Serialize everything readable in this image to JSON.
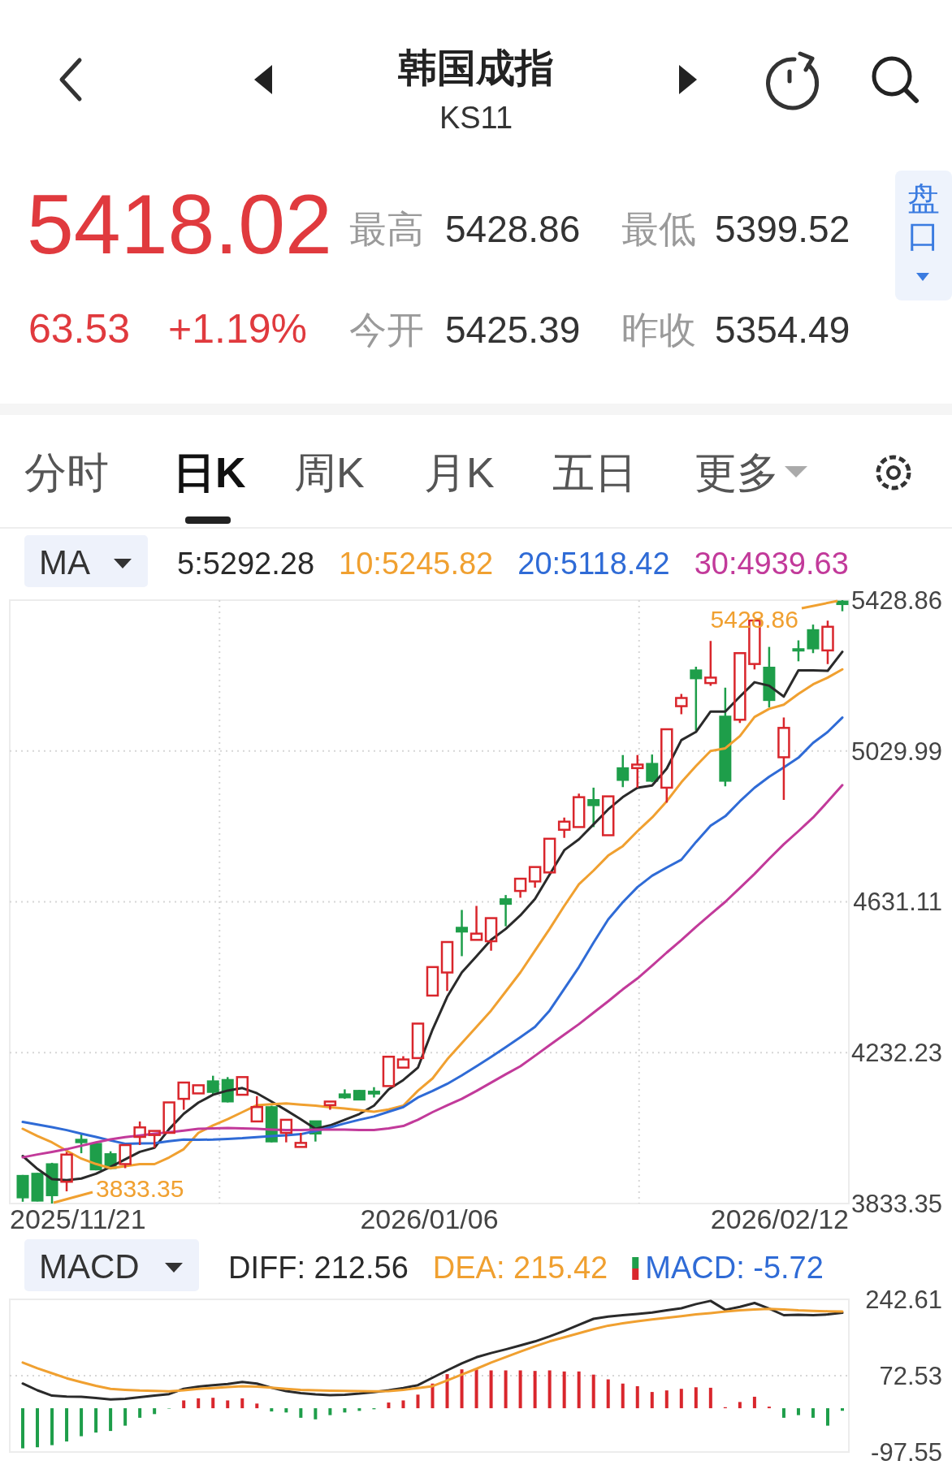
{
  "chart_data": [
    {
      "type": "other",
      "title": "韩国成指",
      "subtitle": "KS11",
      "annotations": [
        "5418.02",
        "最高",
        "5428.86",
        "最低",
        "5399.52",
        "63.53",
        "+1.19%",
        "今开",
        "5425.39",
        "昨收",
        "5354.49",
        "盘口",
        "分时",
        "日K",
        "周K",
        "月K",
        "五日",
        "更多"
      ]
    },
    {
      "type": "candlestick",
      "legend_title": "MA",
      "legend": "top left",
      "grid": true,
      "categories": [
        null,
        null,
        null,
        null,
        null,
        null,
        null,
        null,
        null,
        null,
        null,
        null,
        null,
        null,
        null,
        null,
        null,
        null,
        null,
        null,
        null,
        null,
        null,
        null,
        null,
        null,
        null,
        null,
        null,
        null,
        null,
        null,
        null,
        null,
        null,
        null,
        null,
        null,
        null,
        null,
        null,
        null,
        null,
        null,
        null,
        null,
        null,
        null,
        null,
        null,
        null,
        null,
        null,
        null,
        null,
        null,
        null
      ],
      "ylim": [
        3833.35,
        5428.86
      ],
      "yticks": [
        5428.86,
        5029.99,
        4631.11,
        4232.23,
        3833.35
      ],
      "ohlc": [
        [
          3906.7,
          3908.9,
          3838,
          3849.2
        ],
        [
          3912.4,
          3913.9,
          3839,
          3840.6
        ],
        [
          3937.6,
          3941,
          3833.35,
          3854.9
        ],
        [
          3890.9,
          3969.9,
          3865.7,
          3962.7
        ],
        [
          4002.3,
          4016.6,
          3966.3,
          3995.1
        ],
        [
          3991.5,
          3995,
          3921,
          3923.2
        ],
        [
          3964.2,
          3971.4,
          3923.2,
          3926.8
        ],
        [
          3937.6,
          3991.5,
          3926.8,
          3987.9
        ],
        [
          4009.5,
          4050.4,
          3987.9,
          4034.6
        ],
        [
          4014.5,
          4027.4,
          3980.7,
          4025.3
        ],
        [
          4020.2,
          4102.9,
          4016.7,
          4100.7
        ],
        [
          4110.1,
          4156.8,
          4081.3,
          4153.2
        ],
        [
          4124.5,
          4149.6,
          4120.9,
          4146.0
        ],
        [
          4156.8,
          4171.2,
          4120.9,
          4128.1
        ],
        [
          4160.4,
          4167.6,
          4100.7,
          4102.9
        ],
        [
          4120.9,
          4169.8,
          4117.3,
          4167.6
        ],
        [
          4050.4,
          4117.3,
          4050.4,
          4088.5
        ],
        [
          4088.5,
          4092.1,
          3995.1,
          3997.2
        ],
        [
          4020.2,
          4056.2,
          3995.1,
          4054.7
        ],
        [
          3982.9,
          4020.2,
          3977.1,
          3993.6
        ],
        [
          4051.1,
          4051.1,
          3997.2,
          4018.1
        ],
        [
          4093.5,
          4105,
          4081.3,
          4102.9
        ],
        [
          4122.3,
          4135.2,
          4110.1,
          4113.7
        ],
        [
          4131.6,
          4133.8,
          4106.5,
          4107.9
        ],
        [
          4129.5,
          4141,
          4113.7,
          4123.7
        ],
        [
          4143.9,
          4222.9,
          4142.4,
          4221.5
        ],
        [
          4192.7,
          4222.9,
          4187.0,
          4214.3
        ],
        [
          4217.9,
          4311.3,
          4215.7,
          4309.1
        ],
        [
          4383.2,
          4460.1,
          4381.0,
          4458.6
        ],
        [
          4444.2,
          4526.9,
          4395.4,
          4524.8
        ],
        [
          4562.9,
          4609.6,
          4487.4,
          4552.1
        ],
        [
          4530.5,
          4620.3,
          4530.5,
          4547.0
        ],
        [
          4526.9,
          4589.4,
          4501.8,
          4588.0
        ],
        [
          4638.3,
          4649.1,
          4566.4,
          4625.4
        ],
        [
          4659.9,
          4694.4,
          4641.9,
          4692.2
        ],
        [
          4685.0,
          4724.6,
          4668.5,
          4723.1
        ],
        [
          4708.8,
          4797.9,
          4708.8,
          4797.9
        ],
        [
          4821.6,
          4853.9,
          4800.0,
          4843.1
        ],
        [
          4828.8,
          4917.2,
          4828.8,
          4907.8
        ],
        [
          4900.6,
          4933.0,
          4828.8,
          4886.3
        ],
        [
          4807.2,
          4910.0,
          4807.2,
          4910.0
        ],
        [
          4984.7,
          5019.2,
          4934.4,
          4953.1
        ],
        [
          4984.7,
          5019.2,
          4932.9,
          4994.0
        ],
        [
          4996.2,
          5020.6,
          4947.3,
          4950.9
        ],
        [
          4932.9,
          5087.4,
          4893.4,
          5087.4
        ],
        [
          5148.5,
          5180.9,
          5127.0,
          5170.1
        ],
        [
          5243.4,
          5252.8,
          5083.9,
          5221.9
        ],
        [
          5209.6,
          5321.0,
          5202.5,
          5224.0
        ],
        [
          5121.2,
          5197.4,
          4936.5,
          4950.9
        ],
        [
          5112.6,
          5290.8,
          5104.0,
          5288.7
        ],
        [
          5260.0,
          5378.5,
          5245.6,
          5374.9
        ],
        [
          5250.6,
          5305.2,
          5145.0,
          5164.4
        ],
        [
          5013.4,
          5118.4,
          4900.6,
          5091.0
        ],
        [
          5299.5,
          5322.5,
          5267.1,
          5295.9
        ],
        [
          5349.8,
          5364.2,
          5288.7,
          5300.9
        ],
        [
          5295.9,
          5374.9,
          5260.0,
          5358.4
        ],
        [
          5425.39,
          5428.86,
          5399.52,
          5418.02
        ]
      ],
      "series": [
        {
          "name": "5:5292.28",
          "type": "line",
          "color": "#2a2a2a",
          "values": [
            3959,
            3925,
            3898,
            3895,
            3899.5,
            3912,
            3930.4,
            3950,
            3969.9,
            3980.7,
            4030,
            4070.6,
            4100,
            4120.9,
            4132,
            4138.8,
            4125,
            4102.9,
            4080,
            4056.2,
            4031,
            4040,
            4054.7,
            4070,
            4092.1,
            4135.2,
            4160,
            4192.7,
            4293.3,
            4379.6,
            4444.2,
            4487.4,
            4530.5,
            4559.3,
            4595.2,
            4638.3,
            4703.0,
            4767.7,
            4796.4,
            4835.9,
            4875.5,
            4907.8,
            4933,
            4938.7,
            4983.3,
            5058.7,
            5080.3,
            5134.2,
            5134.2,
            5173.7,
            5211.8,
            5202.5,
            5173.7,
            5243.4,
            5243.4,
            5242,
            5292.28
          ]
        },
        {
          "name": "10:5245.82",
          "type": "line",
          "color": "#f0a030",
          "values": [
            4031,
            4012,
            3995,
            3973,
            3952,
            3938,
            3926.8,
            3932,
            3937.6,
            3937.6,
            3955,
            3977.1,
            4020.2,
            4040,
            4056.2,
            4075,
            4093.5,
            4096,
            4097.9,
            4095,
            4092.1,
            4088,
            4084.9,
            4080,
            4076.3,
            4082,
            4092.1,
            4131.6,
            4164,
            4214.3,
            4257.4,
            4300.5,
            4343.6,
            4393.9,
            4444.2,
            4501.8,
            4559.3,
            4620.3,
            4677.8,
            4713.8,
            4753.3,
            4778.4,
            4818,
            4853.9,
            4897,
            4947.3,
            4990.4,
            5030,
            5037.2,
            5069.5,
            5119.8,
            5141.4,
            5152.2,
            5180.9,
            5206.1,
            5224,
            5245.82
          ]
        },
        {
          "name": "20:5118.42",
          "type": "line",
          "color": "#2f6bd6",
          "values": [
            4049,
            4042,
            4035,
            4027.4,
            4018,
            4009.5,
            4000,
            3991.5,
            3992,
            3993,
            3998,
            4002.3,
            4002,
            4002.3,
            4004,
            4005.9,
            4009,
            4011.6,
            4014,
            4016.7,
            4025,
            4034.6,
            4045,
            4054.7,
            4063.4,
            4076,
            4088.5,
            4113.7,
            4131,
            4149.6,
            4172,
            4196.3,
            4221,
            4246.6,
            4273,
            4300.5,
            4343.6,
            4401.1,
            4458.6,
            4523.3,
            4584.4,
            4630,
            4670,
            4700,
            4722,
            4742.5,
            4789.2,
            4832.3,
            4857.5,
            4897,
            4932.9,
            4961.7,
            4986.8,
            5012,
            5051.5,
            5080.3,
            5118.42
          ]
        },
        {
          "name": "30:4939.63",
          "type": "line",
          "color": "#c23a9a",
          "values": [
            3955.6,
            3963,
            3970,
            3977,
            3986,
            3995,
            4003,
            4009,
            4013,
            4018,
            4021.7,
            4026,
            4031,
            4032,
            4033.2,
            4032,
            4031,
            4029,
            4027.4,
            4028,
            4028.9,
            4029,
            4028.9,
            4028,
            4027.4,
            4032,
            4038.2,
            4055,
            4075,
            4093,
            4110.1,
            4131,
            4153,
            4175,
            4196.3,
            4224,
            4252,
            4280,
            4307.7,
            4338,
            4368,
            4399.7,
            4428.5,
            4462,
            4497,
            4530,
            4565,
            4598,
            4631,
            4668,
            4705,
            4745,
            4783.4,
            4818,
            4853.9,
            4896,
            4939.63
          ]
        }
      ],
      "annotations": [
        "2025/11/21",
        "2026/01/06",
        "2026/02/12",
        "5428.86",
        "3833.35"
      ]
    },
    {
      "type": "bar",
      "legend_title": "MACD",
      "legend": "top",
      "grid": "y",
      "tick_labels": "y",
      "categories": [
        null,
        null,
        null,
        null,
        null,
        null,
        null,
        null,
        null,
        null,
        null,
        null,
        null,
        null,
        null,
        null,
        null,
        null,
        null,
        null,
        null,
        null,
        null,
        null,
        null,
        null,
        null,
        null,
        null,
        null,
        null,
        null,
        null,
        null,
        null,
        null,
        null,
        null,
        null,
        null,
        null,
        null,
        null,
        null,
        null,
        null,
        null,
        null,
        null,
        null,
        null,
        null,
        null,
        null,
        null,
        null,
        null
      ],
      "ylim": [
        -97.55,
        242.61
      ],
      "yticks": [
        242.61,
        72.53,
        -97.55
      ],
      "series": [
        {
          "name": "DIFF: 212.56",
          "type": "line",
          "color": "#2a2a2a",
          "values": [
            54.9,
            40,
            28.0,
            26,
            25.6,
            23,
            19.7,
            21,
            24.4,
            28,
            31.5,
            43.2,
            48,
            51.4,
            54,
            58.5,
            54.9,
            45.6,
            38,
            33.8,
            31,
            29.1,
            30,
            32.6,
            36,
            39.7,
            45,
            51.4,
            68,
            84.3,
            100,
            113.6,
            123,
            131.2,
            140,
            148.8,
            160,
            172.2,
            186,
            199.2,
            204,
            207.4,
            210,
            213.3,
            218,
            222.7,
            232,
            239.1,
            219.2,
            226,
            234.4,
            222,
            207.4,
            208,
            207.4,
            209,
            212.56
          ]
        },
        {
          "name": "DEA: 215.42",
          "type": "line",
          "color": "#f0a030",
          "values": [
            101.9,
            89,
            78,
            66.7,
            58,
            50,
            43.2,
            41,
            39.5,
            38.5,
            37.7,
            40,
            43,
            45,
            47,
            49.1,
            48,
            46,
            43,
            40.9,
            40,
            39,
            38.5,
            38,
            37.7,
            38,
            41,
            45,
            49.1,
            62,
            75,
            88,
            101.9,
            114,
            126,
            138,
            148.8,
            158,
            167,
            176,
            184.0,
            189,
            194,
            198,
            201.6,
            205,
            209,
            212,
            215.6,
            218,
            220,
            221.5,
            220,
            218,
            217,
            216,
            215.42
          ]
        },
        {
          "name": "MACD: -5.72",
          "type": "bar",
          "color": "#2f6bd6",
          "values": [
            -89.4,
            -87,
            -82.3,
            -74.1,
            -62.4,
            -54.2,
            -50.7,
            -38.9,
            -21.3,
            -13.1,
            0,
            17.4,
            22.1,
            23.3,
            17.4,
            22.1,
            10.4,
            -7.2,
            -9.5,
            -21.3,
            -24.8,
            -15.4,
            -9.5,
            -5.9,
            -2.3,
            12.7,
            17.4,
            30.3,
            54.9,
            76.0,
            86.6,
            86.6,
            84.3,
            84.3,
            84.3,
            83.1,
            84.3,
            81.9,
            81.9,
            74.9,
            64.3,
            54.9,
            49.1,
            36.2,
            39.7,
            43.2,
            46.7,
            45.6,
            2.3,
            13.9,
            25.6,
            3.5,
            -21.3,
            -15.4,
            -21.3,
            -38.9,
            -5.72
          ],
          "colors": [
            "#1e9e4a",
            "#1e9e4a",
            "#1e9e4a",
            "#1e9e4a",
            "#1e9e4a",
            "#1e9e4a",
            "#1e9e4a",
            "#1e9e4a",
            "#1e9e4a",
            "#1e9e4a",
            "#1e9e4a",
            "#d9262c",
            "#d9262c",
            "#d9262c",
            "#d9262c",
            "#d9262c",
            "#d9262c",
            "#1e9e4a",
            "#1e9e4a",
            "#1e9e4a",
            "#1e9e4a",
            "#1e9e4a",
            "#1e9e4a",
            "#1e9e4a",
            "#1e9e4a",
            "#d9262c",
            "#d9262c",
            "#d9262c",
            "#d9262c",
            "#d9262c",
            "#d9262c",
            "#d9262c",
            "#d9262c",
            "#d9262c",
            "#d9262c",
            "#d9262c",
            "#d9262c",
            "#d9262c",
            "#d9262c",
            "#d9262c",
            "#d9262c",
            "#d9262c",
            "#d9262c",
            "#d9262c",
            "#d9262c",
            "#d9262c",
            "#d9262c",
            "#d9262c",
            "#d9262c",
            "#d9262c",
            "#d9262c",
            "#d9262c",
            "#1e9e4a",
            "#1e9e4a",
            "#1e9e4a",
            "#1e9e4a",
            "#1e9e4a"
          ]
        }
      ]
    }
  ]
}
